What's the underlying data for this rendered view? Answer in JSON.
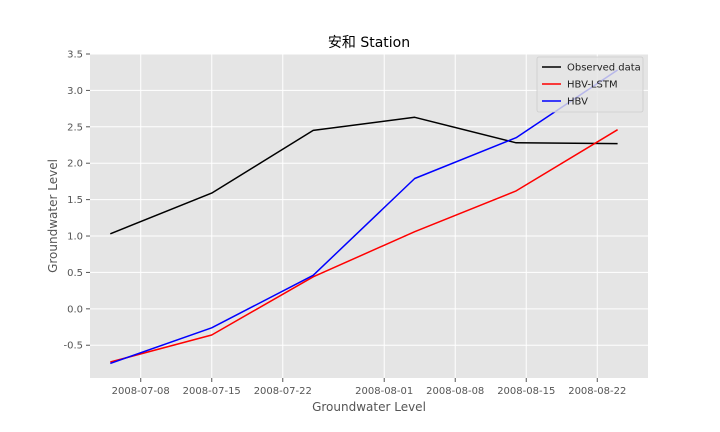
{
  "chart_data": {
    "type": "line",
    "title": "安和 Station",
    "xlabel": "Groundwater Level",
    "ylabel": "Groundwater Level",
    "x_type": "date",
    "xlim": [
      "2008-07-03",
      "2008-08-27"
    ],
    "ylim": [
      -0.95,
      3.5
    ],
    "xticks": [
      "2008-07-08",
      "2008-07-15",
      "2008-07-22",
      "2008-08-01",
      "2008-08-08",
      "2008-08-15",
      "2008-08-22"
    ],
    "yticks": [
      3.5,
      3.0,
      2.5,
      2.0,
      1.5,
      1.0,
      0.5,
      0.0,
      -0.5
    ],
    "ytick_labels": [
      "3.5",
      "3.0",
      "2.5",
      "2.0",
      "1.5",
      "1.0",
      "0.5",
      "0.0",
      "-0.5"
    ],
    "grid": true,
    "legend_position": "top-right",
    "x": [
      "2008-07-05",
      "2008-07-15",
      "2008-07-25",
      "2008-08-04",
      "2008-08-14",
      "2008-08-24"
    ],
    "series": [
      {
        "name": "Observed data",
        "color": "#000000",
        "values": [
          1.03,
          1.59,
          2.45,
          2.63,
          2.28,
          2.27
        ]
      },
      {
        "name": "HBV-LSTM",
        "color": "#ff0000",
        "values": [
          -0.73,
          -0.36,
          0.44,
          1.06,
          1.62,
          2.46
        ]
      },
      {
        "name": "HBV",
        "color": "#0000ff",
        "values": [
          -0.75,
          -0.26,
          0.46,
          1.79,
          2.35,
          3.28
        ]
      }
    ]
  }
}
